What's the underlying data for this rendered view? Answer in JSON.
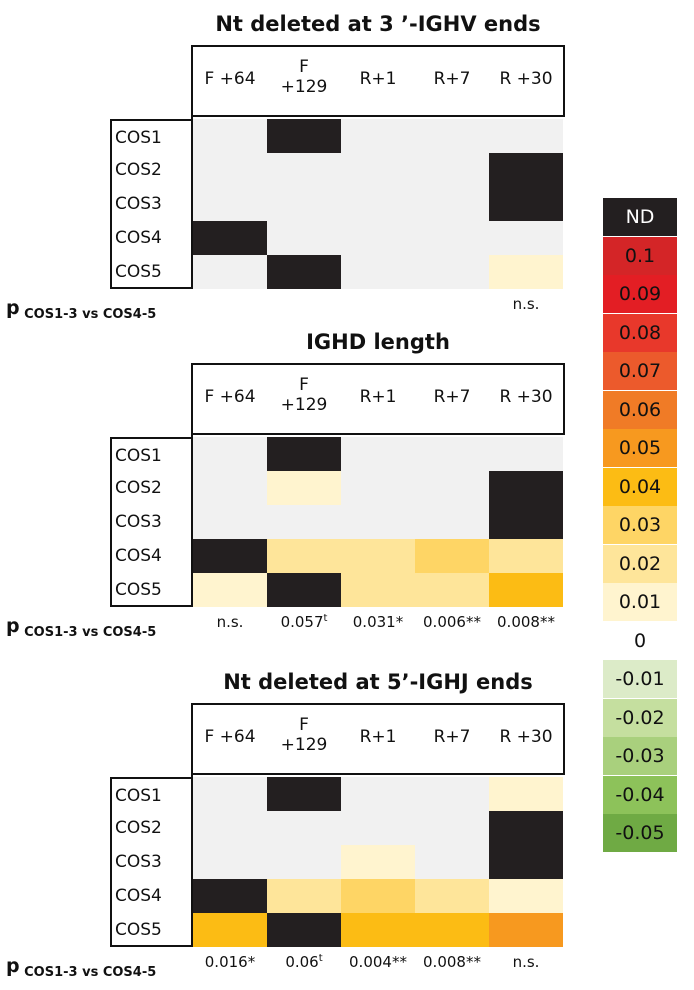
{
  "chart_data": {
    "type": "heatmap",
    "columns": [
      "F +64",
      "F\n+129",
      "R+1",
      "R+7",
      "R +30"
    ],
    "rows": [
      "COS1",
      "COS2",
      "COS3",
      "COS4",
      "COS5"
    ],
    "p_label": "p",
    "p_label_sub": "COS1-3 vs COS4-5",
    "panels": [
      {
        "title": "Nt deleted at 3 ’-IGHV ends",
        "values": [
          [
            0,
            "ND",
            0,
            0,
            0
          ],
          [
            0,
            0,
            0,
            0,
            "ND"
          ],
          [
            0,
            0,
            0,
            0,
            "ND"
          ],
          [
            "ND",
            0,
            0,
            0,
            0
          ],
          [
            0,
            "ND",
            0,
            0,
            0.01
          ]
        ],
        "p_values": [
          {
            "text": "",
            "sup": ""
          },
          {
            "text": "",
            "sup": ""
          },
          {
            "text": "",
            "sup": ""
          },
          {
            "text": "",
            "sup": ""
          },
          {
            "text": "n.s.",
            "sup": ""
          }
        ]
      },
      {
        "title": "IGHD length",
        "values": [
          [
            0,
            "ND",
            0,
            0,
            0
          ],
          [
            0,
            0.01,
            0,
            0,
            "ND"
          ],
          [
            0,
            0,
            0,
            0,
            "ND"
          ],
          [
            "ND",
            0.02,
            0.02,
            0.03,
            0.02
          ],
          [
            0.01,
            "ND",
            0.02,
            0.02,
            0.04
          ]
        ],
        "p_values": [
          {
            "text": "n.s.",
            "sup": ""
          },
          {
            "text": "0.057",
            "sup": "t"
          },
          {
            "text": "0.031*",
            "sup": ""
          },
          {
            "text": "0.006**",
            "sup": ""
          },
          {
            "text": "0.008**",
            "sup": ""
          }
        ]
      },
      {
        "title": "Nt deleted at 5’-IGHJ ends",
        "values": [
          [
            0,
            "ND",
            0,
            0,
            0.01
          ],
          [
            0,
            0,
            0,
            0,
            "ND"
          ],
          [
            0,
            0,
            0.01,
            0,
            "ND"
          ],
          [
            "ND",
            0.02,
            0.03,
            0.02,
            0.01
          ],
          [
            0.04,
            "ND",
            0.04,
            0.04,
            0.05
          ]
        ],
        "p_values": [
          {
            "text": "0.016*",
            "sup": ""
          },
          {
            "text": "0.06",
            "sup": "t"
          },
          {
            "text": "0.004**",
            "sup": ""
          },
          {
            "text": "0.008**",
            "sup": ""
          },
          {
            "text": "n.s.",
            "sup": ""
          }
        ]
      }
    ],
    "legend": [
      {
        "label": "ND",
        "color": "#231f20",
        "text_color": "#ffffff"
      },
      {
        "label": "0.1",
        "color": "#d42527",
        "text_color": "#111111"
      },
      {
        "label": "0.09",
        "color": "#e31e24",
        "text_color": "#111111"
      },
      {
        "label": "0.08",
        "color": "#e8382b",
        "text_color": "#111111"
      },
      {
        "label": "0.07",
        "color": "#ec5a2c",
        "text_color": "#111111"
      },
      {
        "label": "0.06",
        "color": "#f07b26",
        "text_color": "#111111"
      },
      {
        "label": "0.05",
        "color": "#f7991f",
        "text_color": "#111111"
      },
      {
        "label": "0.04",
        "color": "#fcbc14",
        "text_color": "#111111"
      },
      {
        "label": "0.03",
        "color": "#fed565",
        "text_color": "#111111"
      },
      {
        "label": "0.02",
        "color": "#fee59a",
        "text_color": "#111111"
      },
      {
        "label": "0.01",
        "color": "#fff4cf",
        "text_color": "#111111"
      },
      {
        "label": "0",
        "color": "#ffffff",
        "text_color": "#111111"
      },
      {
        "label": "-0.01",
        "color": "#dcebc8",
        "text_color": "#111111"
      },
      {
        "label": "-0.02",
        "color": "#c5df9f",
        "text_color": "#111111"
      },
      {
        "label": "-0.03",
        "color": "#a9d07d",
        "text_color": "#111111"
      },
      {
        "label": "-0.04",
        "color": "#8dc25a",
        "text_color": "#111111"
      },
      {
        "label": "-0.05",
        "color": "#6faa44",
        "text_color": "#111111"
      }
    ],
    "zero_cell_color": "#f1f1f1"
  }
}
